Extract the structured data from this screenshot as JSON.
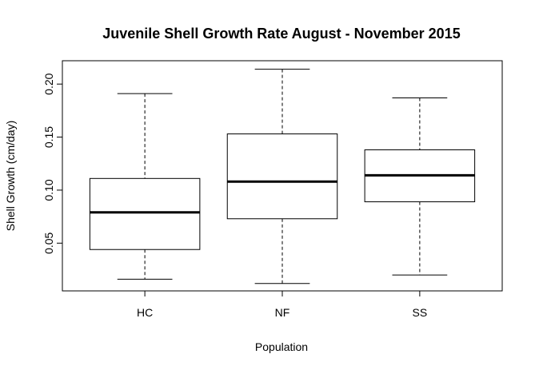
{
  "chart_data": {
    "type": "boxplot",
    "title": "Juvenile Shell Growth Rate August - November 2015",
    "xlabel": "Population",
    "ylabel": "Shell Growth (cm/day)",
    "ylim": [
      0.005,
      0.222
    ],
    "yticks": [
      0.05,
      0.1,
      0.15,
      0.2
    ],
    "ytick_labels": [
      "0.05",
      "0.10",
      "0.15",
      "0.20"
    ],
    "grid": false,
    "categories": [
      "HC",
      "NF",
      "SS"
    ],
    "boxes": [
      {
        "name": "HC",
        "min": 0.016,
        "q1": 0.044,
        "median": 0.079,
        "q3": 0.111,
        "max": 0.191
      },
      {
        "name": "NF",
        "min": 0.012,
        "q1": 0.073,
        "median": 0.108,
        "q3": 0.153,
        "max": 0.214
      },
      {
        "name": "SS",
        "min": 0.02,
        "q1": 0.089,
        "median": 0.114,
        "q3": 0.138,
        "max": 0.187
      }
    ]
  }
}
